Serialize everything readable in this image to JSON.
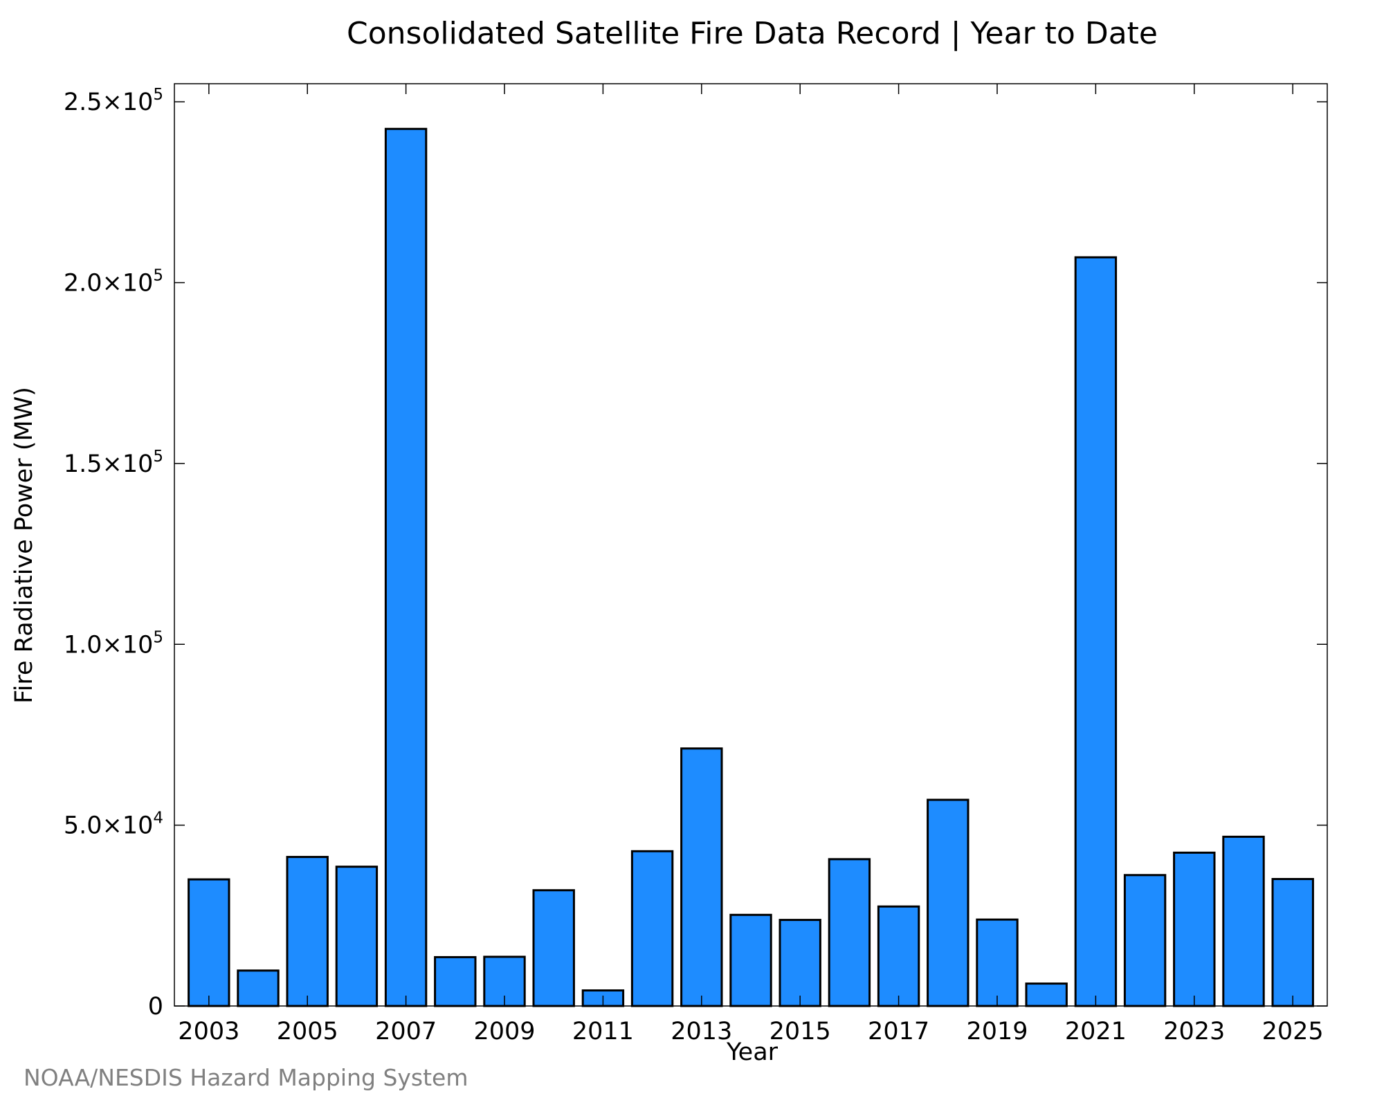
{
  "chart_data": {
    "type": "bar",
    "title": "Consolidated Satellite Fire Data Record | Year to Date",
    "xlabel": "Year",
    "ylabel": "Fire Radiative Power (MW)",
    "categories": [
      "2003",
      "2004",
      "2005",
      "2006",
      "2007",
      "2008",
      "2009",
      "2010",
      "2011",
      "2012",
      "2013",
      "2014",
      "2015",
      "2016",
      "2017",
      "2018",
      "2019",
      "2020",
      "2021",
      "2022",
      "2023",
      "2024",
      "2025"
    ],
    "values": [
      35000,
      9800,
      41200,
      38500,
      242500,
      13500,
      13600,
      32000,
      4300,
      42800,
      71200,
      25200,
      23800,
      40600,
      27500,
      57000,
      23900,
      6200,
      207000,
      36200,
      42400,
      46800,
      35100
    ],
    "x_tick_labels": [
      "2003",
      "2005",
      "2007",
      "2009",
      "2011",
      "2013",
      "2015",
      "2017",
      "2019",
      "2021",
      "2023",
      "2025"
    ],
    "y_ticks": [
      {
        "value": 0,
        "mantissa": "0",
        "exponent": ""
      },
      {
        "value": 50000,
        "mantissa": "5.0×10",
        "exponent": "4"
      },
      {
        "value": 100000,
        "mantissa": "1.0×10",
        "exponent": "5"
      },
      {
        "value": 150000,
        "mantissa": "1.5×10",
        "exponent": "5"
      },
      {
        "value": 200000,
        "mantissa": "2.0×10",
        "exponent": "5"
      },
      {
        "value": 250000,
        "mantissa": "2.5×10",
        "exponent": "5"
      }
    ],
    "ylim": [
      0,
      255000
    ],
    "xlim": [
      2002.3,
      2025.7
    ],
    "grid": false,
    "legend": "none",
    "bar_color": "#1e8cff",
    "bar_edge_color": "#000000",
    "axis_color": "#000000"
  },
  "credit": "NOAA/NESDIS Hazard Mapping System"
}
